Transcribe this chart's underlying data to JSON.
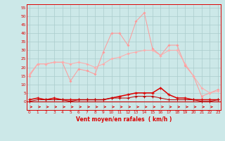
{
  "x": [
    0,
    1,
    2,
    3,
    4,
    5,
    6,
    7,
    8,
    9,
    10,
    11,
    12,
    13,
    14,
    15,
    16,
    17,
    18,
    19,
    20,
    21,
    22,
    23
  ],
  "line_rafales": [
    15,
    22,
    22,
    23,
    23,
    12,
    19,
    18,
    16,
    29,
    40,
    40,
    33,
    47,
    52,
    31,
    27,
    33,
    33,
    21,
    15,
    3,
    5,
    7
  ],
  "line_moy_upper": [
    16,
    22,
    22,
    23,
    23,
    22,
    23,
    22,
    20,
    22,
    25,
    26,
    28,
    29,
    30,
    30,
    27,
    30,
    30,
    22,
    15,
    8,
    5,
    6
  ],
  "line_red_bold": [
    1,
    2,
    1,
    2,
    1,
    1,
    1,
    1,
    1,
    1,
    2,
    3,
    4,
    5,
    5,
    5,
    8,
    4,
    2,
    2,
    1,
    1,
    1,
    1
  ],
  "line_red_thin": [
    0,
    1,
    1,
    1,
    1,
    0,
    1,
    1,
    1,
    1,
    2,
    2,
    2,
    3,
    3,
    3,
    2,
    1,
    1,
    1,
    1,
    0,
    0,
    1
  ],
  "line_zero": [
    0,
    0,
    0,
    0,
    0,
    0,
    0,
    0,
    0,
    0,
    0,
    0,
    0,
    0,
    0,
    0,
    0,
    0,
    0,
    0,
    0,
    0,
    0,
    0
  ],
  "bg_color": "#cce8e8",
  "grid_color": "#aacccc",
  "color_light_pink": "#ff9999",
  "color_mid_pink": "#ffaaaa",
  "color_red": "#dd0000",
  "color_dark_red": "#bb0000",
  "xlabel": "Vent moyen/en rafales  ( km/h )",
  "yticks": [
    0,
    5,
    10,
    15,
    20,
    25,
    30,
    35,
    40,
    45,
    50,
    55
  ],
  "ylim_min": -5,
  "ylim_max": 57,
  "xlim_min": -0.3,
  "xlim_max": 23.3
}
